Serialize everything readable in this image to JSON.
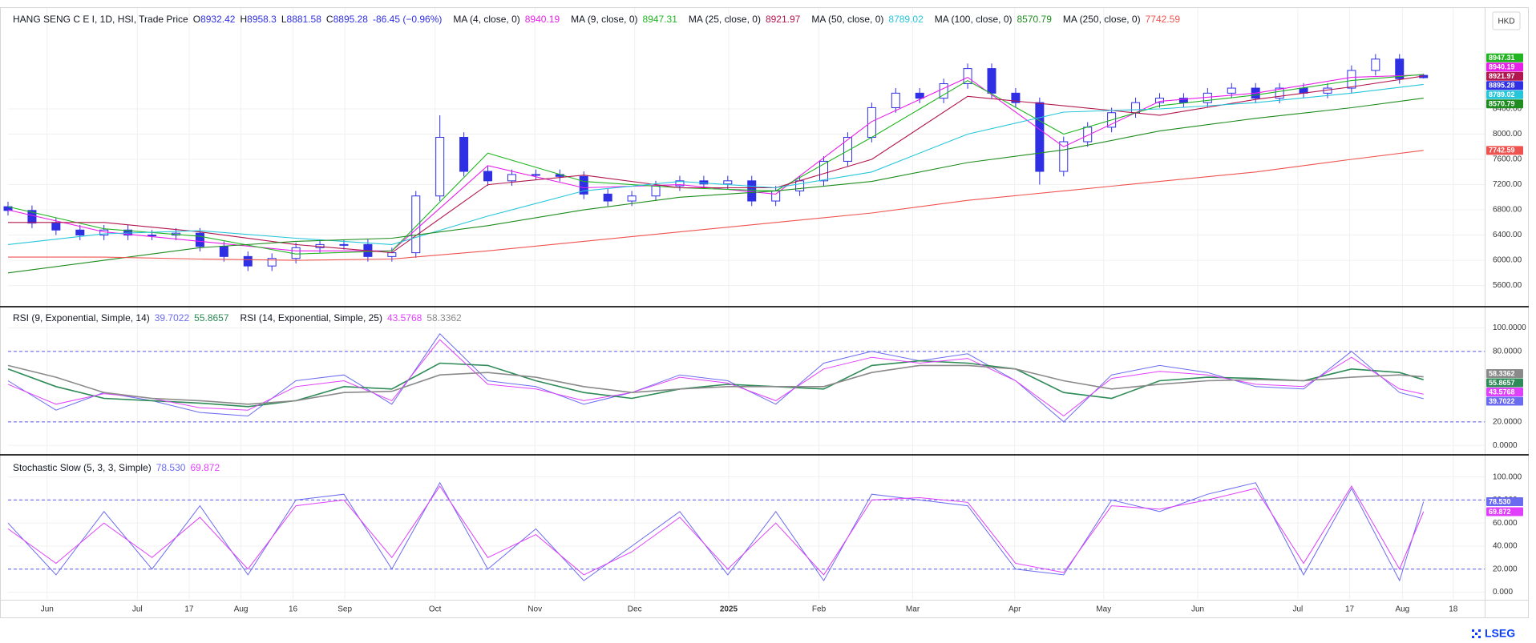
{
  "chart_data": [
    {
      "type": "candlestick",
      "title": "HANG SENG C E I, 1D, HSI, Trade Price",
      "ohlc_labels": [
        "O",
        "H",
        "L",
        "C"
      ],
      "change": "-86.45 (−0.96%)",
      "currency": "HKD",
      "candles": {
        "color": "#2f2fe4",
        "x": [
          0,
          1,
          2,
          3,
          4,
          5,
          6,
          7,
          8,
          9,
          10,
          11,
          12,
          13,
          14,
          15,
          16,
          17,
          18,
          19,
          20,
          21,
          22,
          23,
          24,
          25,
          26,
          27,
          28,
          29,
          30,
          31,
          32,
          33,
          34,
          35,
          36,
          37,
          38,
          39,
          40,
          41,
          42,
          43,
          44,
          45,
          46,
          47,
          48,
          49,
          50,
          51,
          52,
          53,
          54,
          55,
          56,
          57,
          58,
          59
        ],
        "open": [
          6850,
          6790,
          6590,
          6480,
          6400,
          6480,
          6400,
          6400,
          6430,
          6220,
          6060,
          5910,
          6030,
          6200,
          6250,
          6250,
          6060,
          6120,
          7020,
          7950,
          7410,
          7260,
          7360,
          7360,
          7330,
          7050,
          6940,
          7020,
          7180,
          7260,
          7210,
          7260,
          6940,
          7100,
          7260,
          7570,
          7950,
          8420,
          8650,
          8570,
          8800,
          9040,
          8650,
          8500,
          7410,
          7880,
          8110,
          8340,
          8500,
          8570,
          8500,
          8650,
          8730,
          8570,
          8730,
          8650,
          8730,
          9010,
          9190,
          8932.42
        ],
        "high": [
          6930,
          6870,
          6670,
          6560,
          6560,
          6560,
          6480,
          6510,
          6510,
          6300,
          6140,
          6110,
          6280,
          6330,
          6330,
          6330,
          6200,
          7100,
          8300,
          8030,
          7490,
          7440,
          7440,
          7440,
          7410,
          7130,
          7100,
          7260,
          7340,
          7340,
          7340,
          7340,
          7180,
          7340,
          7650,
          8030,
          8500,
          8730,
          8730,
          8880,
          9120,
          9120,
          8730,
          8580,
          7960,
          8190,
          8420,
          8580,
          8650,
          8650,
          8730,
          8810,
          8810,
          8810,
          8810,
          8810,
          9090,
          9270,
          9270,
          8958.3
        ],
        "low": [
          6710,
          6510,
          6400,
          6320,
          6320,
          6320,
          6320,
          6320,
          6140,
          5980,
          5830,
          5830,
          5950,
          6120,
          6170,
          5980,
          5980,
          6040,
          6940,
          7330,
          7180,
          7180,
          7280,
          7250,
          6970,
          6860,
          6860,
          6940,
          7100,
          7130,
          7130,
          6860,
          6860,
          7020,
          7180,
          7490,
          7870,
          8340,
          8490,
          8490,
          8720,
          8570,
          8420,
          7200,
          7330,
          7800,
          8030,
          8260,
          8420,
          8420,
          8420,
          8570,
          8490,
          8490,
          8570,
          8570,
          8650,
          8930,
          8800,
          8881.58
        ],
        "close": [
          6790,
          6590,
          6480,
          6400,
          6480,
          6400,
          6400,
          6430,
          6220,
          6060,
          5910,
          6030,
          6200,
          6250,
          6250,
          6060,
          6120,
          7020,
          7950,
          7410,
          7260,
          7360,
          7360,
          7330,
          7050,
          6940,
          7020,
          7180,
          7260,
          7210,
          7260,
          6940,
          7100,
          7260,
          7570,
          7950,
          8420,
          8650,
          8570,
          8800,
          9040,
          8650,
          8500,
          7410,
          7880,
          8110,
          8340,
          8500,
          8570,
          8500,
          8650,
          8730,
          8570,
          8730,
          8650,
          8730,
          9010,
          9190,
          8880,
          8895.28
        ]
      },
      "series": [
        {
          "name": "MA (4, close, 0)",
          "color": "#e91ee9",
          "x": [
            0,
            4,
            8,
            12,
            16,
            20,
            24,
            28,
            32,
            36,
            40,
            44,
            48,
            52,
            56,
            59
          ],
          "values": [
            6800,
            6450,
            6300,
            6150,
            6150,
            7500,
            7150,
            7200,
            7050,
            8200,
            8900,
            7800,
            8520,
            8650,
            8900,
            8940.19
          ]
        },
        {
          "name": "MA (9, close, 0)",
          "color": "#22b522",
          "x": [
            0,
            4,
            8,
            12,
            16,
            20,
            24,
            28,
            32,
            36,
            40,
            44,
            48,
            52,
            56,
            59
          ],
          "values": [
            6850,
            6500,
            6380,
            6100,
            6150,
            7700,
            7250,
            7150,
            7100,
            7950,
            8850,
            8000,
            8450,
            8620,
            8850,
            8947.31
          ]
        },
        {
          "name": "MA (25, close, 0)",
          "color": "#b2164f",
          "x": [
            0,
            4,
            8,
            12,
            16,
            20,
            24,
            28,
            32,
            36,
            40,
            44,
            48,
            52,
            56,
            59
          ],
          "values": [
            6600,
            6600,
            6450,
            6250,
            6120,
            7200,
            7350,
            7150,
            7150,
            7600,
            8600,
            8450,
            8300,
            8550,
            8750,
            8921.97
          ]
        },
        {
          "name": "MA (50, close, 0)",
          "color": "#26c6da",
          "x": [
            0,
            4,
            8,
            12,
            16,
            20,
            24,
            28,
            32,
            36,
            40,
            44,
            48,
            52,
            56,
            59
          ],
          "values": [
            6250,
            6420,
            6470,
            6350,
            6250,
            6700,
            7100,
            7250,
            7150,
            7400,
            8000,
            8350,
            8400,
            8500,
            8650,
            8789.02
          ]
        },
        {
          "name": "MA (100, close, 0)",
          "color": "#1e8c1e",
          "x": [
            0,
            4,
            8,
            12,
            16,
            20,
            24,
            28,
            32,
            36,
            40,
            44,
            48,
            52,
            56,
            59
          ],
          "values": [
            5800,
            6000,
            6200,
            6300,
            6350,
            6550,
            6800,
            7000,
            7100,
            7250,
            7550,
            7750,
            8050,
            8250,
            8420,
            8570.79
          ]
        },
        {
          "name": "MA (250, close, 0)",
          "color": "#ef5350",
          "x": [
            0,
            4,
            8,
            12,
            16,
            20,
            24,
            28,
            32,
            36,
            40,
            44,
            48,
            52,
            56,
            59
          ],
          "values": [
            6050,
            6050,
            6020,
            6000,
            6020,
            6150,
            6300,
            6450,
            6600,
            6750,
            6950,
            7100,
            7250,
            7400,
            7600,
            7742.59
          ]
        }
      ],
      "ylim": [
        5290,
        10000
      ],
      "yticks": [
        {
          "value": 5600,
          "label": "5600.00"
        },
        {
          "value": 6000,
          "label": "6000.00"
        },
        {
          "value": 6400,
          "label": "6400.00"
        },
        {
          "value": 6800,
          "label": "6800.00"
        },
        {
          "value": 7200,
          "label": "7200.00"
        },
        {
          "value": 7600,
          "label": "7600.00"
        },
        {
          "value": 8000,
          "label": "8000.00"
        },
        {
          "value": 8400,
          "label": "8400.00"
        }
      ],
      "xlim": [
        0,
        61.55
      ],
      "xticks": [
        {
          "value": 1.63,
          "label": "Jun"
        },
        {
          "value": 5.39,
          "label": "Jul"
        },
        {
          "value": 7.55,
          "label": "17"
        },
        {
          "value": 9.71,
          "label": "Aug"
        },
        {
          "value": 11.88,
          "label": "16"
        },
        {
          "value": 14.04,
          "label": "Sep"
        },
        {
          "value": 17.8,
          "label": "Oct"
        },
        {
          "value": 21.96,
          "label": "Nov"
        },
        {
          "value": 26.12,
          "label": "Dec"
        },
        {
          "value": 30.04,
          "label": "2025"
        },
        {
          "value": 33.8,
          "label": "Feb"
        },
        {
          "value": 37.71,
          "label": "Mar"
        },
        {
          "value": 41.96,
          "label": "Apr"
        },
        {
          "value": 45.67,
          "label": "May"
        },
        {
          "value": 49.59,
          "label": "Jun"
        },
        {
          "value": 53.76,
          "label": "Jul"
        },
        {
          "value": 55.92,
          "label": "17"
        },
        {
          "value": 58.12,
          "label": "Aug"
        },
        {
          "value": 60.24,
          "label": "18"
        }
      ],
      "grid": true
    },
    {
      "type": "line",
      "x": [
        0,
        2,
        4,
        6,
        8,
        10,
        12,
        14,
        16,
        18,
        20,
        22,
        24,
        26,
        28,
        30,
        32,
        34,
        36,
        38,
        40,
        42,
        44,
        46,
        48,
        50,
        52,
        54,
        56,
        58,
        59
      ],
      "series": [
        {
          "name": "RSI (9, Exponential, Simple, 14)",
          "color": "#6b6bf0",
          "values": [
            55,
            30,
            45,
            38,
            28,
            25,
            55,
            60,
            35,
            95,
            55,
            50,
            35,
            45,
            60,
            55,
            35,
            70,
            80,
            72,
            78,
            55,
            20,
            60,
            68,
            62,
            50,
            48,
            80,
            45,
            39.7022
          ],
          "ma_color": "#2e8b57",
          "ma_values": [
            65,
            50,
            40,
            38,
            36,
            33,
            38,
            50,
            48,
            70,
            68,
            55,
            45,
            40,
            48,
            52,
            50,
            48,
            68,
            72,
            70,
            65,
            45,
            40,
            55,
            58,
            57,
            55,
            65,
            62,
            55.8657
          ]
        },
        {
          "name": "RSI (14, Exponential, Simple, 25)",
          "color": "#e040fb",
          "values": [
            52,
            35,
            44,
            40,
            32,
            30,
            50,
            55,
            38,
            90,
            52,
            48,
            38,
            45,
            58,
            53,
            38,
            65,
            75,
            70,
            74,
            55,
            25,
            57,
            63,
            60,
            52,
            50,
            75,
            48,
            43.5768
          ],
          "ma_color": "#8a8a8a",
          "ma_values": [
            68,
            58,
            45,
            40,
            38,
            35,
            38,
            45,
            46,
            60,
            62,
            58,
            50,
            45,
            48,
            50,
            50,
            50,
            62,
            68,
            68,
            65,
            55,
            48,
            52,
            55,
            56,
            55,
            58,
            60,
            58.3362
          ]
        }
      ],
      "levels": [
        80,
        20
      ],
      "ylim": [
        -6.7,
        116.7
      ],
      "yticks": [
        {
          "value": 0,
          "label": "0.0000"
        },
        {
          "value": 20,
          "label": "20.0000"
        },
        {
          "value": 80,
          "label": "80.0000"
        },
        {
          "value": 100,
          "label": "100.0000"
        }
      ],
      "grid": true
    },
    {
      "type": "line",
      "name": "Stochastic Slow (5, 3, 3, Simple)",
      "x": [
        0,
        2,
        4,
        6,
        8,
        10,
        12,
        14,
        16,
        18,
        20,
        22,
        24,
        26,
        28,
        30,
        32,
        34,
        36,
        38,
        40,
        42,
        44,
        46,
        48,
        50,
        52,
        54,
        56,
        58,
        59
      ],
      "k": {
        "color": "#6b6bf0",
        "values": [
          60,
          15,
          70,
          20,
          75,
          15,
          80,
          85,
          20,
          95,
          20,
          55,
          10,
          40,
          70,
          15,
          70,
          10,
          85,
          80,
          75,
          20,
          15,
          80,
          70,
          85,
          95,
          15,
          90,
          10,
          78.53
        ],
        "last_label": "78.530"
      },
      "d": {
        "color": "#e040fb",
        "values": [
          55,
          25,
          60,
          30,
          65,
          20,
          75,
          80,
          30,
          92,
          30,
          50,
          15,
          35,
          65,
          20,
          60,
          15,
          80,
          82,
          78,
          25,
          17,
          75,
          72,
          80,
          90,
          25,
          92,
          20,
          69.872
        ]
      },
      "levels": [
        80,
        20
      ],
      "ylim": [
        -5.9,
        117.8
      ],
      "yticks": [
        {
          "value": 0,
          "label": "0.000"
        },
        {
          "value": 20,
          "label": "20.000"
        },
        {
          "value": 40,
          "label": "40.000"
        },
        {
          "value": 60,
          "label": "60.000"
        },
        {
          "value": 80,
          "label": "80.000"
        },
        {
          "value": 100,
          "label": "100.000"
        }
      ],
      "grid": true
    }
  ],
  "logo": "LSEG"
}
